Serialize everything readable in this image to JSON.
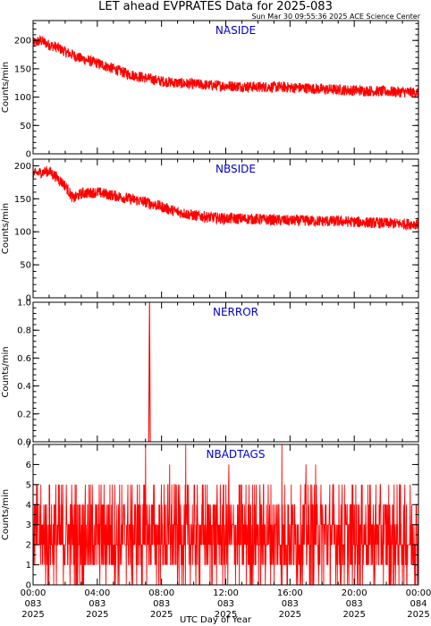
{
  "header": {
    "title": "LET ahead EVPRATES Data for 2025-083",
    "timestamp": "Sun Mar 30 09:55:36 2025 ACE Science Center"
  },
  "xaxis": {
    "label": "UTC Day of Year",
    "ticks": [
      {
        "hour": 0,
        "time": "00:00",
        "doy": "083",
        "year": "2025"
      },
      {
        "hour": 4,
        "time": "04:00",
        "doy": "083",
        "year": "2025"
      },
      {
        "hour": 8,
        "time": "08:00",
        "doy": "083",
        "year": "2025"
      },
      {
        "hour": 12,
        "time": "12:00",
        "doy": "083",
        "year": "2025"
      },
      {
        "hour": 16,
        "time": "16:00",
        "doy": "083",
        "year": "2025"
      },
      {
        "hour": 20,
        "time": "20:00",
        "doy": "083",
        "year": "2025"
      },
      {
        "hour": 24,
        "time": "00:00",
        "doy": "084",
        "year": "2025"
      }
    ]
  },
  "colors": {
    "series": "#ff0000",
    "panel_title": "#0000cc",
    "axis": "#000000"
  },
  "chart_data": [
    {
      "type": "line",
      "title": "NASIDE",
      "ylabel": "Counts/min",
      "ylim": [
        0,
        235
      ],
      "yticks": [
        0,
        50,
        100,
        150,
        200
      ],
      "xlim": [
        0,
        24
      ],
      "x": [
        0,
        0.5,
        1,
        1.5,
        2,
        3,
        4,
        5,
        6,
        7,
        8,
        9,
        10,
        11,
        12,
        13,
        14,
        15,
        16,
        17,
        18,
        19,
        20,
        21,
        22,
        23,
        24
      ],
      "values": [
        195,
        200,
        192,
        188,
        180,
        168,
        160,
        150,
        140,
        134,
        128,
        125,
        123,
        121,
        120,
        119,
        118,
        118,
        117,
        116,
        114,
        113,
        112,
        111,
        110,
        109,
        108
      ],
      "noise": 8
    },
    {
      "type": "line",
      "title": "NBSIDE",
      "ylabel": "Counts/min",
      "ylim": [
        0,
        210
      ],
      "yticks": [
        0,
        50,
        100,
        150,
        200
      ],
      "xlim": [
        0,
        24
      ],
      "x": [
        0,
        0.5,
        1,
        1.5,
        2,
        2.5,
        3,
        4,
        5,
        6,
        7,
        8,
        9,
        10,
        11,
        12,
        13,
        14,
        15,
        16,
        17,
        18,
        19,
        20,
        21,
        22,
        23,
        24
      ],
      "values": [
        188,
        190,
        192,
        182,
        170,
        150,
        158,
        160,
        155,
        150,
        145,
        138,
        130,
        125,
        122,
        120,
        120,
        119,
        118,
        117,
        117,
        116,
        116,
        115,
        114,
        113,
        112,
        112
      ],
      "noise": 7
    },
    {
      "type": "line",
      "title": "NERROR",
      "ylabel": "Counts/min",
      "ylim": [
        0,
        1.0
      ],
      "yticks": [
        0.0,
        0.2,
        0.4,
        0.6,
        0.8,
        1.0
      ],
      "xlim": [
        0,
        24
      ],
      "x": [
        0,
        7.2,
        7.25,
        7.3,
        24
      ],
      "values": [
        0,
        0,
        1,
        0,
        0
      ],
      "noise": 0
    },
    {
      "type": "line",
      "title": "NBADTAGS",
      "ylabel": "Counts/min",
      "ylim": [
        0,
        7
      ],
      "yticks": [
        0,
        1,
        2,
        3,
        4,
        5,
        6,
        7
      ],
      "xlim": [
        0,
        24
      ],
      "distribution": [
        0,
        1,
        1,
        2,
        2,
        2,
        2,
        3,
        3,
        3,
        4,
        4,
        5
      ],
      "spikes": [
        {
          "x": 7.0,
          "y": 7
        },
        {
          "x": 9.5,
          "y": 7
        },
        {
          "x": 15.5,
          "y": 7
        },
        {
          "x": 8.5,
          "y": 6
        },
        {
          "x": 12.2,
          "y": 6
        },
        {
          "x": 17.0,
          "y": 6
        },
        {
          "x": 17.6,
          "y": 6
        }
      ]
    }
  ]
}
